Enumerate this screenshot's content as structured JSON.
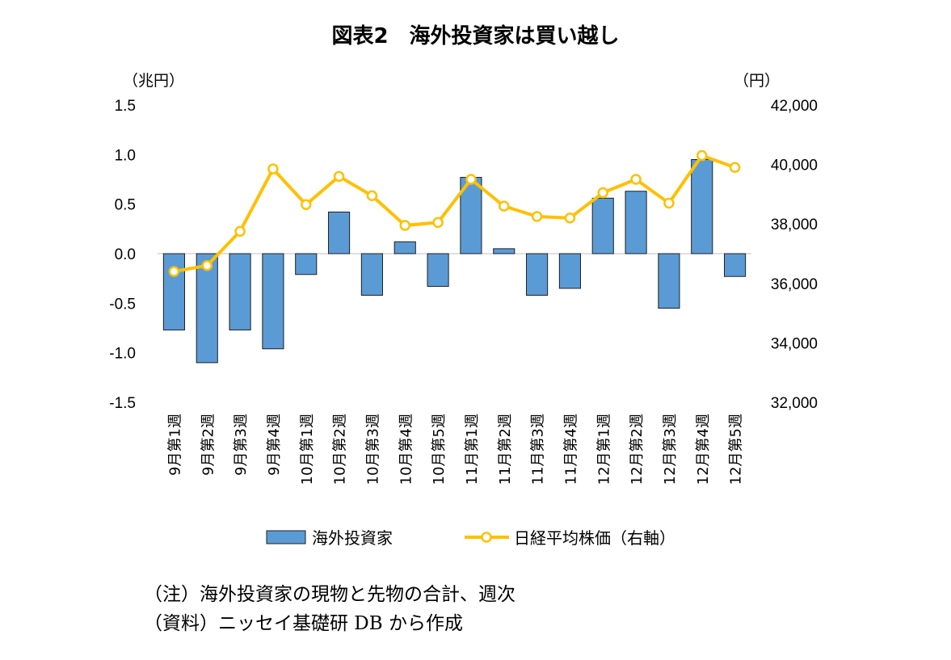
{
  "chart_data": {
    "type": "bar+line",
    "title": "図表2　海外投資家は買い越し",
    "y_left_unit": "（兆円）",
    "y_right_unit": "（円）",
    "y_left_ticks": [
      "1.5",
      "1.0",
      "0.5",
      "0.0",
      "-0.5",
      "-1.0",
      "-1.5"
    ],
    "y_left_range": [
      -1.5,
      1.5
    ],
    "y_right_ticks": [
      "42,000",
      "40,000",
      "38,000",
      "36,000",
      "34,000",
      "32,000"
    ],
    "y_right_range": [
      32000,
      42000
    ],
    "categories": [
      "9月第1週",
      "9月第2週",
      "9月第3週",
      "9月第4週",
      "10月第1週",
      "10月第2週",
      "10月第3週",
      "10月第4週",
      "10月第5週",
      "11月第1週",
      "11月第2週",
      "11月第3週",
      "11月第4週",
      "12月第1週",
      "12月第2週",
      "12月第3週",
      "12月第4週",
      "12月第5週"
    ],
    "series": [
      {
        "name": "海外投資家",
        "type": "bar",
        "axis": "left",
        "color": "#5B9BD5",
        "values": [
          -0.77,
          -1.1,
          -0.77,
          -0.96,
          -0.21,
          0.42,
          -0.42,
          0.12,
          -0.33,
          0.77,
          0.05,
          -0.42,
          -0.35,
          0.56,
          0.63,
          -0.55,
          0.95,
          -0.23
        ]
      },
      {
        "name": "日経平均株価（右軸）",
        "type": "line",
        "axis": "right",
        "color": "#FFC000",
        "values": [
          36400,
          36600,
          37750,
          39850,
          38650,
          39600,
          38950,
          37950,
          38050,
          39500,
          38600,
          38250,
          38200,
          39050,
          39500,
          38700,
          40300,
          39900
        ]
      }
    ],
    "grid": false,
    "legend_position": "bottom"
  },
  "notes": [
    "（注）海外投資家の現物と先物の合計、週次",
    "（資料）ニッセイ基礎研 DB から作成"
  ]
}
